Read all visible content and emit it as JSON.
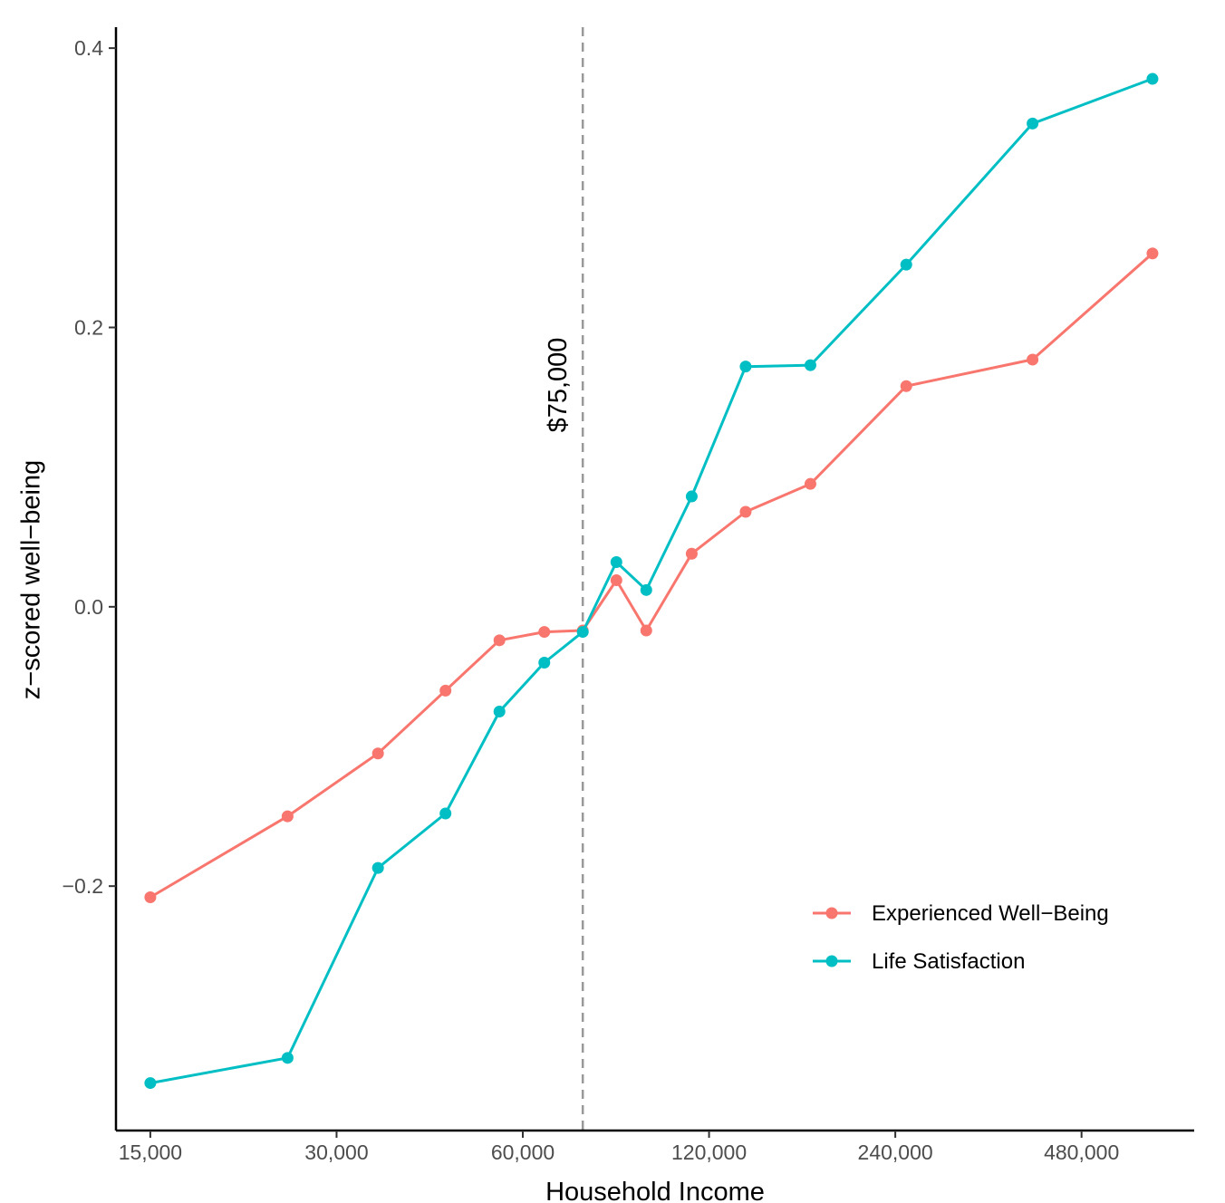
{
  "chart_data": {
    "type": "line",
    "title": "",
    "xlabel": "Household Income",
    "ylabel": "z−scored well−being",
    "x_scale": "log",
    "x_ticks": [
      15000,
      30000,
      60000,
      120000,
      240000,
      480000
    ],
    "x_tick_labels": [
      "15,000",
      "30,000",
      "60,000",
      "120,000",
      "240,000",
      "480,000"
    ],
    "xlim": [
      13200,
      730000
    ],
    "y_ticks": [
      -0.2,
      0.0,
      0.2,
      0.4
    ],
    "y_tick_labels": [
      "−0.2",
      "0.0",
      "0.2",
      "0.4"
    ],
    "ylim": [
      -0.375,
      0.415
    ],
    "grid": false,
    "legend_position": "bottom-right",
    "reference_line": {
      "x": 75000,
      "style": "dashed",
      "color": "#999999",
      "label": "$75,000"
    },
    "series": [
      {
        "name": "Experienced Well−Being",
        "color": "#F8766D",
        "x": [
          15000,
          25000,
          35000,
          45000,
          55000,
          65000,
          75000,
          85000,
          95000,
          112500,
          137500,
          175000,
          250000,
          400000,
          625000
        ],
        "y": [
          -0.208,
          -0.15,
          -0.105,
          -0.06,
          -0.024,
          -0.018,
          -0.017,
          0.019,
          -0.017,
          0.038,
          0.068,
          0.088,
          0.158,
          0.177,
          0.253
        ]
      },
      {
        "name": "Life Satisfaction",
        "color": "#00BFC4",
        "x": [
          15000,
          25000,
          35000,
          45000,
          55000,
          65000,
          75000,
          85000,
          95000,
          112500,
          137500,
          175000,
          250000,
          400000,
          625000
        ],
        "y": [
          -0.341,
          -0.323,
          -0.187,
          -0.148,
          -0.075,
          -0.04,
          -0.018,
          0.032,
          0.012,
          0.079,
          0.172,
          0.173,
          0.245,
          0.346,
          0.378
        ]
      }
    ]
  }
}
